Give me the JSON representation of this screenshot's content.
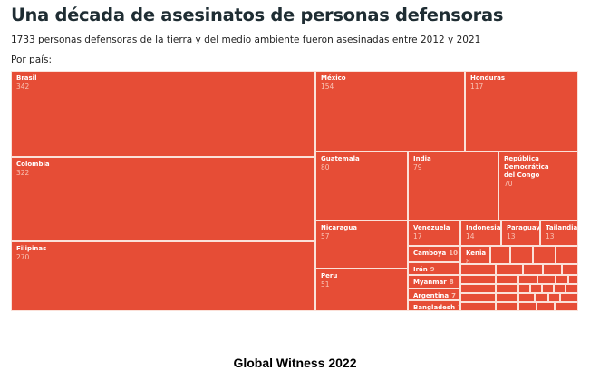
{
  "chart_data": {
    "type": "treemap",
    "title": "Una década de asesinatos de personas defensoras",
    "subtitle": "1733 personas defensoras de la tierra y del medio ambiente fueron asesinadas entre 2012 y 2021",
    "group_label": "Por país:",
    "color": "#e64d36",
    "items": [
      {
        "name": "Brasil",
        "value": 342
      },
      {
        "name": "Colombia",
        "value": 322
      },
      {
        "name": "Filipinas",
        "value": 270
      },
      {
        "name": "México",
        "value": 154
      },
      {
        "name": "Honduras",
        "value": 117
      },
      {
        "name": "Guatemala",
        "value": 80
      },
      {
        "name": "India",
        "value": 79
      },
      {
        "name": "República Democrática del Congo",
        "value": 70
      },
      {
        "name": "Nicaragua",
        "value": 57
      },
      {
        "name": "Peru",
        "value": 51
      },
      {
        "name": "Venezuela",
        "value": 17
      },
      {
        "name": "Indonesia",
        "value": 14
      },
      {
        "name": "Paraguay",
        "value": 13
      },
      {
        "name": "Tailandia",
        "value": 13
      },
      {
        "name": "Camboya",
        "value": 10
      },
      {
        "name": "Irán",
        "value": 9
      },
      {
        "name": "Myanmar",
        "value": 8
      },
      {
        "name": "Argentina",
        "value": 7
      },
      {
        "name": "Bangladesh",
        "value": 7
      },
      {
        "name": "Kenia",
        "value": 8
      }
    ]
  },
  "caption": "Global Witness 2022"
}
